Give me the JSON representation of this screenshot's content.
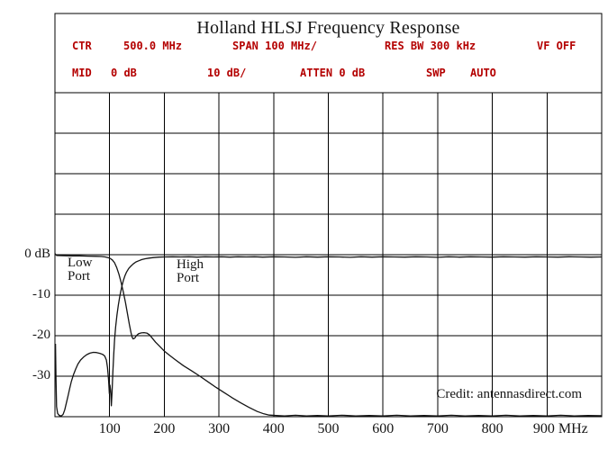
{
  "header": {
    "title": "Holland HLSJ Frequency Response"
  },
  "settings": {
    "ctr_label": "CTR",
    "ctr_value": "500.0 MHz",
    "span": "SPAN 100 MHz/",
    "res_bw": "RES BW 300 kHz",
    "vf": "VF OFF",
    "mid_label": "MID",
    "mid_value": "0 dB",
    "scale": "10 dB/",
    "atten": "ATTEN 0 dB",
    "swp_label": "SWP",
    "swp_value": "AUTO"
  },
  "labels": {
    "low_port_line1": "Low",
    "low_port_line2": "Port",
    "high_port_line1": "High",
    "high_port_line2": "Port",
    "credit": "Credit: antennasdirect.com"
  },
  "colors": {
    "settings_red": "#b40000",
    "trace": "#141414",
    "grid": "#000000"
  },
  "chart_data": {
    "type": "line",
    "title": "Holland HLSJ Frequency Response",
    "xlabel": "",
    "x_unit": "MHz",
    "ylabel": "dB",
    "xlim": [
      0,
      1000
    ],
    "ylim": [
      -40,
      40
    ],
    "grid": true,
    "db_per_division": 10,
    "mhz_per_division": 100,
    "x_gridlines_mhz": [
      0,
      100,
      200,
      300,
      400,
      500,
      600,
      700,
      800,
      900,
      1000
    ],
    "y_gridlines_db": [
      40,
      30,
      20,
      10,
      0,
      -10,
      -20,
      -30,
      -40
    ],
    "x_ticks": [
      {
        "mhz": 100,
        "label": "100"
      },
      {
        "mhz": 200,
        "label": "200"
      },
      {
        "mhz": 300,
        "label": "300"
      },
      {
        "mhz": 400,
        "label": "400"
      },
      {
        "mhz": 500,
        "label": "500"
      },
      {
        "mhz": 600,
        "label": "600"
      },
      {
        "mhz": 700,
        "label": "700"
      },
      {
        "mhz": 800,
        "label": "800"
      },
      {
        "mhz": 900,
        "label": "900 MHz"
      }
    ],
    "y_ticks": [
      {
        "db": 0,
        "label": "0 dB"
      },
      {
        "db": -10,
        "label": "-10"
      },
      {
        "db": -20,
        "label": "-20"
      },
      {
        "db": -30,
        "label": "-30"
      }
    ],
    "series": [
      {
        "name": "Low Port",
        "points": [
          [
            0,
            0.3
          ],
          [
            3,
            -0.2
          ],
          [
            15,
            -0.25
          ],
          [
            30,
            -0.3
          ],
          [
            45,
            -0.3
          ],
          [
            60,
            -0.35
          ],
          [
            75,
            -0.4
          ],
          [
            85,
            -0.45
          ],
          [
            92,
            -0.55
          ],
          [
            97,
            -0.7
          ],
          [
            101,
            -0.9
          ],
          [
            105,
            -1.3
          ],
          [
            109,
            -2.0
          ],
          [
            113,
            -3.2
          ],
          [
            117,
            -4.8
          ],
          [
            121,
            -6.8
          ],
          [
            125,
            -9.2
          ],
          [
            129,
            -11.8
          ],
          [
            133,
            -14.8
          ],
          [
            136,
            -17.2
          ],
          [
            139,
            -19.2
          ],
          [
            141,
            -20.3
          ],
          [
            143,
            -20.8
          ],
          [
            146,
            -20.6
          ],
          [
            149,
            -20.0
          ],
          [
            153,
            -19.5
          ],
          [
            158,
            -19.3
          ],
          [
            163,
            -19.25
          ],
          [
            168,
            -19.35
          ],
          [
            173,
            -19.8
          ],
          [
            178,
            -20.6
          ],
          [
            184,
            -21.6
          ],
          [
            190,
            -22.4
          ],
          [
            200,
            -23.8
          ],
          [
            210,
            -24.9
          ],
          [
            220,
            -25.9
          ],
          [
            235,
            -27.4
          ],
          [
            250,
            -28.7
          ],
          [
            265,
            -30.0
          ],
          [
            280,
            -31.4
          ],
          [
            295,
            -32.8
          ],
          [
            310,
            -34.1
          ],
          [
            325,
            -35.4
          ],
          [
            340,
            -36.6
          ],
          [
            355,
            -37.7
          ],
          [
            370,
            -38.7
          ],
          [
            382,
            -39.3
          ],
          [
            392,
            -39.6
          ],
          [
            405,
            -39.7
          ],
          [
            420,
            -39.8
          ],
          [
            440,
            -39.65
          ],
          [
            460,
            -39.8
          ],
          [
            480,
            -39.7
          ],
          [
            500,
            -39.8
          ],
          [
            525,
            -39.65
          ],
          [
            550,
            -39.8
          ],
          [
            575,
            -39.7
          ],
          [
            600,
            -39.8
          ],
          [
            625,
            -39.65
          ],
          [
            650,
            -39.8
          ],
          [
            675,
            -39.7
          ],
          [
            700,
            -39.8
          ],
          [
            725,
            -39.65
          ],
          [
            750,
            -39.8
          ],
          [
            775,
            -39.7
          ],
          [
            800,
            -39.8
          ],
          [
            825,
            -39.65
          ],
          [
            850,
            -39.8
          ],
          [
            875,
            -39.7
          ],
          [
            900,
            -39.8
          ],
          [
            925,
            -39.65
          ],
          [
            950,
            -39.8
          ],
          [
            975,
            -39.7
          ],
          [
            1000,
            -39.75
          ]
        ]
      },
      {
        "name": "High Port",
        "points": [
          [
            1,
            -22
          ],
          [
            2,
            -31
          ],
          [
            3,
            -37.5
          ],
          [
            5,
            -39.2
          ],
          [
            8,
            -39.7
          ],
          [
            12,
            -39.8
          ],
          [
            15,
            -39.4
          ],
          [
            18,
            -38.3
          ],
          [
            21,
            -36.6
          ],
          [
            24,
            -34.8
          ],
          [
            27,
            -33.0
          ],
          [
            30,
            -31.3
          ],
          [
            34,
            -29.6
          ],
          [
            38,
            -28.2
          ],
          [
            42,
            -27.0
          ],
          [
            47,
            -26.0
          ],
          [
            52,
            -25.3
          ],
          [
            58,
            -24.7
          ],
          [
            64,
            -24.3
          ],
          [
            70,
            -24.1
          ],
          [
            76,
            -24.15
          ],
          [
            82,
            -24.35
          ],
          [
            87,
            -24.6
          ],
          [
            91,
            -25.0
          ],
          [
            94,
            -26.0
          ],
          [
            96,
            -27.8
          ],
          [
            98,
            -30.8
          ],
          [
            99.5,
            -34.3
          ],
          [
            100.7,
            -32.2
          ],
          [
            101.8,
            -33.5
          ],
          [
            103.2,
            -37.3
          ],
          [
            104.5,
            -34.0
          ],
          [
            106,
            -29.0
          ],
          [
            107.5,
            -24.5
          ],
          [
            109,
            -21.0
          ],
          [
            111,
            -17.8
          ],
          [
            113.5,
            -14.8
          ],
          [
            116,
            -12.4
          ],
          [
            119,
            -10.0
          ],
          [
            122,
            -8.0
          ],
          [
            125,
            -6.4
          ],
          [
            128,
            -5.2
          ],
          [
            131,
            -4.3
          ],
          [
            135,
            -3.4
          ],
          [
            139,
            -2.8
          ],
          [
            143,
            -2.3
          ],
          [
            148,
            -1.8
          ],
          [
            153,
            -1.5
          ],
          [
            159,
            -1.2
          ],
          [
            165,
            -1.0
          ],
          [
            172,
            -0.85
          ],
          [
            180,
            -0.7
          ],
          [
            190,
            -0.6
          ],
          [
            200,
            -0.55
          ],
          [
            215,
            -0.5
          ],
          [
            230,
            -0.55
          ],
          [
            245,
            -0.5
          ],
          [
            260,
            -0.6
          ],
          [
            275,
            -0.5
          ],
          [
            290,
            -0.55
          ],
          [
            305,
            -0.5
          ],
          [
            320,
            -0.6
          ],
          [
            335,
            -0.5
          ],
          [
            350,
            -0.55
          ],
          [
            365,
            -0.5
          ],
          [
            380,
            -0.6
          ],
          [
            400,
            -0.5
          ],
          [
            420,
            -0.55
          ],
          [
            440,
            -0.65
          ],
          [
            460,
            -0.5
          ],
          [
            480,
            -0.6
          ],
          [
            500,
            -0.5
          ],
          [
            520,
            -0.55
          ],
          [
            540,
            -0.65
          ],
          [
            560,
            -0.5
          ],
          [
            580,
            -0.6
          ],
          [
            600,
            -0.5
          ],
          [
            620,
            -0.55
          ],
          [
            640,
            -0.6
          ],
          [
            660,
            -0.5
          ],
          [
            680,
            -0.55
          ],
          [
            700,
            -0.65
          ],
          [
            720,
            -0.5
          ],
          [
            740,
            -0.6
          ],
          [
            760,
            -0.5
          ],
          [
            780,
            -0.55
          ],
          [
            800,
            -0.6
          ],
          [
            820,
            -0.5
          ],
          [
            840,
            -0.55
          ],
          [
            860,
            -0.6
          ],
          [
            880,
            -0.5
          ],
          [
            900,
            -0.55
          ],
          [
            920,
            -0.6
          ],
          [
            940,
            -0.5
          ],
          [
            960,
            -0.55
          ],
          [
            980,
            -0.6
          ],
          [
            1000,
            -0.55
          ]
        ]
      }
    ]
  }
}
